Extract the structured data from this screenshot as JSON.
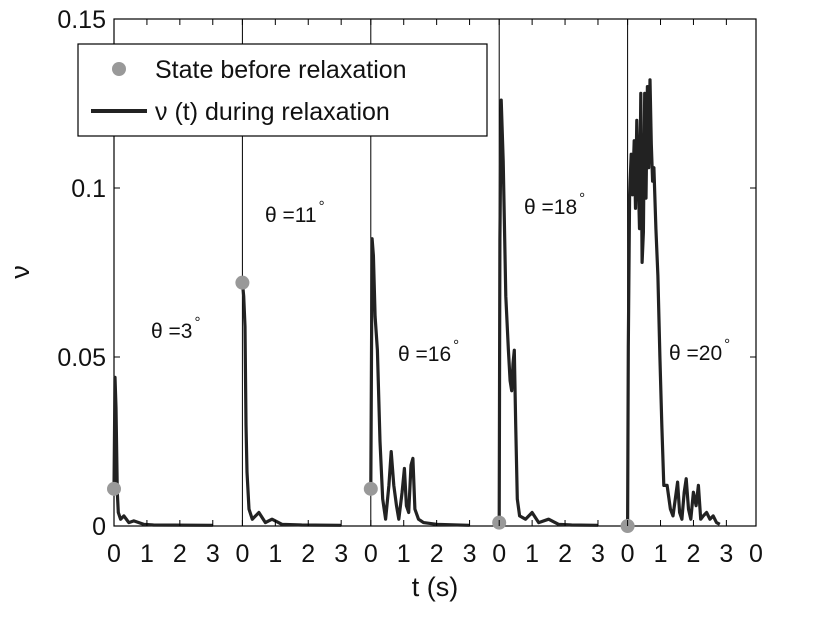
{
  "chart_data": {
    "type": "line",
    "title": "",
    "xlabel": "t (s)",
    "ylabel": "ν",
    "ylim": [
      0,
      0.15
    ],
    "y_ticks": [
      "0",
      "0.05",
      "0.1",
      "0.15"
    ],
    "x_tick_labels": [
      "0",
      "1",
      "2",
      "3"
    ],
    "x_final_tick_label": "0",
    "panel_xlim": [
      0,
      3.9
    ],
    "legend": {
      "position": "top-left",
      "entries": [
        {
          "label": "State before relaxation",
          "marker": "circle",
          "color": "#999999"
        },
        {
          "label": "ν (t) during relaxation",
          "marker": "line",
          "color": "#222222"
        }
      ]
    },
    "colors": {
      "line": "#222222",
      "marker": "#999999",
      "axis": "#000000"
    },
    "panels": [
      {
        "angle_label": "θ =3",
        "degree_symbol": "°",
        "before_state": 0.011,
        "series": [
          [
            0,
            0.011
          ],
          [
            0.03,
            0.044
          ],
          [
            0.06,
            0.035
          ],
          [
            0.1,
            0.01
          ],
          [
            0.13,
            0.004
          ],
          [
            0.2,
            0.002
          ],
          [
            0.3,
            0.003
          ],
          [
            0.45,
            0.001
          ],
          [
            0.6,
            0.0015
          ],
          [
            0.9,
            0.0005
          ],
          [
            1.2,
            0.0003
          ],
          [
            3.0,
            0.0002
          ]
        ]
      },
      {
        "angle_label": "θ =11",
        "degree_symbol": "°",
        "before_state": 0.072,
        "series": [
          [
            0,
            0.072
          ],
          [
            0.04,
            0.068
          ],
          [
            0.08,
            0.059
          ],
          [
            0.11,
            0.03
          ],
          [
            0.14,
            0.016
          ],
          [
            0.2,
            0.005
          ],
          [
            0.3,
            0.002
          ],
          [
            0.5,
            0.004
          ],
          [
            0.7,
            0.001
          ],
          [
            0.9,
            0.002
          ],
          [
            1.2,
            0.0005
          ],
          [
            1.8,
            0.0003
          ],
          [
            3.0,
            0.0002
          ]
        ]
      },
      {
        "angle_label": "θ =16",
        "degree_symbol": "°",
        "before_state": 0.011,
        "series": [
          [
            0,
            0.011
          ],
          [
            0.04,
            0.085
          ],
          [
            0.08,
            0.08
          ],
          [
            0.13,
            0.062
          ],
          [
            0.2,
            0.052
          ],
          [
            0.28,
            0.025
          ],
          [
            0.36,
            0.008
          ],
          [
            0.45,
            0.002
          ],
          [
            0.55,
            0.012
          ],
          [
            0.62,
            0.022
          ],
          [
            0.7,
            0.012
          ],
          [
            0.78,
            0.006
          ],
          [
            0.85,
            0.002
          ],
          [
            0.95,
            0.01
          ],
          [
            1.02,
            0.017
          ],
          [
            1.08,
            0.006
          ],
          [
            1.15,
            0.004
          ],
          [
            1.22,
            0.018
          ],
          [
            1.28,
            0.02
          ],
          [
            1.34,
            0.005
          ],
          [
            1.45,
            0.002
          ],
          [
            1.6,
            0.001
          ],
          [
            2.0,
            0.0005
          ],
          [
            3.0,
            0.0002
          ]
        ]
      },
      {
        "angle_label": "θ =18",
        "degree_symbol": "°",
        "before_state": 0.001,
        "series": [
          [
            0,
            0.001
          ],
          [
            0.02,
            0.085
          ],
          [
            0.06,
            0.126
          ],
          [
            0.12,
            0.108
          ],
          [
            0.2,
            0.068
          ],
          [
            0.28,
            0.052
          ],
          [
            0.33,
            0.043
          ],
          [
            0.38,
            0.04
          ],
          [
            0.42,
            0.048
          ],
          [
            0.46,
            0.052
          ],
          [
            0.5,
            0.03
          ],
          [
            0.55,
            0.008
          ],
          [
            0.62,
            0.003
          ],
          [
            0.8,
            0.002
          ],
          [
            1.0,
            0.004
          ],
          [
            1.2,
            0.001
          ],
          [
            1.5,
            0.002
          ],
          [
            1.8,
            0.0005
          ],
          [
            2.2,
            0.0003
          ],
          [
            3.0,
            0.0002
          ]
        ]
      },
      {
        "angle_label": "θ =20",
        "degree_symbol": "°",
        "before_state": 0.0,
        "series": [
          [
            0,
            0.0
          ],
          [
            0.02,
            0.053
          ],
          [
            0.06,
            0.098
          ],
          [
            0.11,
            0.11
          ],
          [
            0.15,
            0.098
          ],
          [
            0.2,
            0.114
          ],
          [
            0.24,
            0.094
          ],
          [
            0.28,
            0.12
          ],
          [
            0.32,
            0.105
          ],
          [
            0.36,
            0.088
          ],
          [
            0.4,
            0.128
          ],
          [
            0.44,
            0.078
          ],
          [
            0.48,
            0.087
          ],
          [
            0.52,
            0.128
          ],
          [
            0.56,
            0.097
          ],
          [
            0.6,
            0.13
          ],
          [
            0.64,
            0.106
          ],
          [
            0.68,
            0.132
          ],
          [
            0.72,
            0.113
          ],
          [
            0.76,
            0.102
          ],
          [
            0.8,
            0.106
          ],
          [
            0.86,
            0.088
          ],
          [
            0.92,
            0.074
          ],
          [
            0.98,
            0.05
          ],
          [
            1.04,
            0.03
          ],
          [
            1.1,
            0.012
          ],
          [
            1.2,
            0.012
          ],
          [
            1.3,
            0.005
          ],
          [
            1.38,
            0.003
          ],
          [
            1.45,
            0.008
          ],
          [
            1.52,
            0.013
          ],
          [
            1.58,
            0.004
          ],
          [
            1.65,
            0.002
          ],
          [
            1.72,
            0.01
          ],
          [
            1.78,
            0.014
          ],
          [
            1.85,
            0.005
          ],
          [
            1.92,
            0.002
          ],
          [
            2.0,
            0.01
          ],
          [
            2.08,
            0.006
          ],
          [
            2.15,
            0.012
          ],
          [
            2.22,
            0.002
          ],
          [
            2.3,
            0.003
          ],
          [
            2.4,
            0.004
          ],
          [
            2.5,
            0.002
          ],
          [
            2.6,
            0.003
          ],
          [
            2.7,
            0.001
          ],
          [
            2.8,
            0.0005
          ]
        ]
      }
    ]
  }
}
